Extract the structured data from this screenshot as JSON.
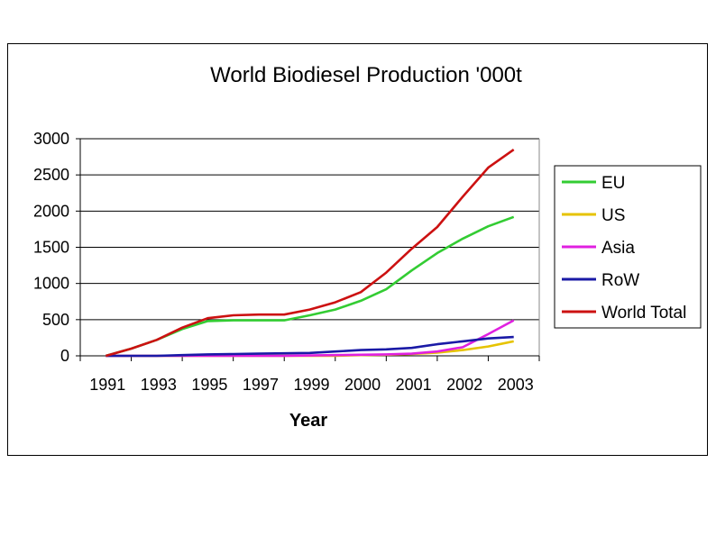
{
  "chart_data": {
    "type": "line",
    "title": "World Biodiesel Production '000t",
    "xlabel": "Year",
    "ylabel": "",
    "ylim": [
      0,
      3000
    ],
    "yticks": [
      "0",
      "500",
      "1000",
      "1500",
      "2000",
      "2500",
      "3000"
    ],
    "categories": [
      "1991",
      "1993",
      "1995",
      "1997",
      "1999",
      "2000",
      "2001",
      "2002",
      "2003"
    ],
    "grid": true,
    "legend_position": "right",
    "x": [
      0,
      0.5,
      1,
      1.5,
      2,
      2.5,
      3,
      3.5,
      4,
      4.5,
      5,
      5.5,
      6,
      6.5,
      7,
      7.5,
      8
    ],
    "series": [
      {
        "name": "EU",
        "color": "#33cc33",
        "values": [
          0,
          100,
          220,
          370,
          480,
          490,
          490,
          490,
          560,
          640,
          760,
          920,
          1180,
          1420,
          1620,
          1790,
          1920
        ]
      },
      {
        "name": "US",
        "color": "#e6c300",
        "values": [
          0,
          0,
          0,
          0,
          0,
          0,
          0,
          0,
          0,
          0,
          10,
          15,
          25,
          45,
          80,
          130,
          200
        ]
      },
      {
        "name": "Asia",
        "color": "#e020e0",
        "values": [
          0,
          0,
          0,
          0,
          0,
          0,
          0,
          0,
          5,
          10,
          15,
          20,
          30,
          60,
          120,
          300,
          490
        ]
      },
      {
        "name": "RoW",
        "color": "#1a1aa6",
        "values": [
          0,
          0,
          0,
          10,
          20,
          25,
          30,
          35,
          40,
          60,
          80,
          90,
          110,
          160,
          200,
          240,
          260
        ]
      },
      {
        "name": "World Total",
        "color": "#cc1111",
        "values": [
          0,
          100,
          220,
          390,
          520,
          560,
          570,
          570,
          640,
          740,
          880,
          1150,
          1480,
          1780,
          2200,
          2600,
          2850
        ]
      }
    ]
  }
}
